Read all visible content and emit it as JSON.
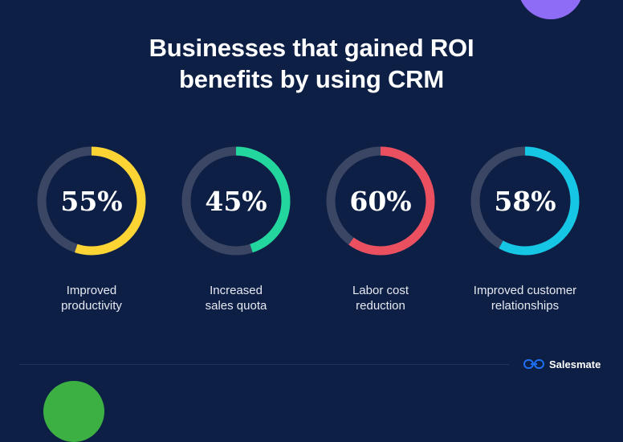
{
  "header": {
    "title_line1": "Businesses that gained ROI",
    "title_line2": "benefits by using CRM"
  },
  "chart_data": {
    "type": "donut",
    "title": "Businesses that gained ROI benefits by using CRM",
    "unit": "%",
    "categories": [
      "Improved productivity",
      "Increased sales quota",
      "Labor cost reduction",
      "Improved customer relationships"
    ],
    "values": [
      55,
      45,
      60,
      58
    ],
    "value_labels": [
      "55%",
      "45%",
      "60%",
      "58%"
    ],
    "colors": [
      "#fcd535",
      "#22d69e",
      "#eb5060",
      "#16c6e5"
    ],
    "track_color": "#3a4664",
    "labels": [
      {
        "line1": "Improved",
        "line2": "productivity"
      },
      {
        "line1": "Increased",
        "line2": "sales quota"
      },
      {
        "line1": "Labor cost",
        "line2": "reduction"
      },
      {
        "line1": "Improved customer",
        "line2": "relationships"
      }
    ]
  },
  "footer": {
    "brand_name": "Salesmate",
    "brand_icon": "salesmate-logo-icon"
  },
  "colors": {
    "background": "#0d1f44",
    "brand_blue": "#1f6ff2"
  }
}
